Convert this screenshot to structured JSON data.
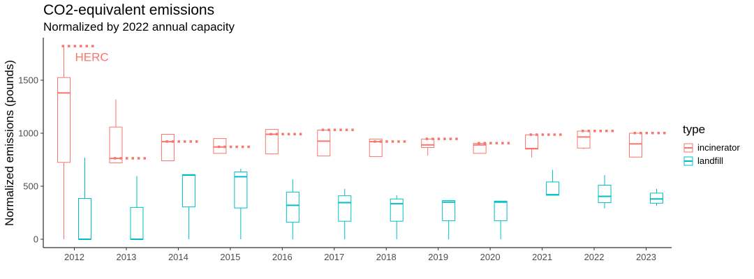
{
  "title": "CO2-equivalent emissions",
  "subtitle": "Normalized by 2022 annual capacity",
  "chart_data": {
    "type": "boxplot",
    "ylabel": "Normalized emissions (pounds)",
    "xlabel": "",
    "ylim": [
      -80,
      1900
    ],
    "yticks": [
      0,
      500,
      1000,
      1500
    ],
    "categories": [
      "2012",
      "2013",
      "2014",
      "2015",
      "2016",
      "2017",
      "2018",
      "2019",
      "2020",
      "2021",
      "2022",
      "2023"
    ],
    "grid": false,
    "legend": {
      "title": "type",
      "position": "right",
      "entries": [
        "incinerator",
        "landfill"
      ]
    },
    "colors": {
      "incinerator": "#F8766D",
      "landfill": "#00BFC4"
    },
    "series": [
      {
        "name": "incinerator",
        "boxes": [
          {
            "min": 0,
            "q1": 725,
            "median": 1380,
            "q3": 1525,
            "max": 1820
          },
          {
            "min": 720,
            "q1": 720,
            "median": 762,
            "q3": 1058,
            "max": 1320
          },
          {
            "min": 740,
            "q1": 740,
            "median": 920,
            "q3": 990,
            "max": 990
          },
          {
            "min": 810,
            "q1": 810,
            "median": 870,
            "q3": 950,
            "max": 950
          },
          {
            "min": 805,
            "q1": 805,
            "median": 990,
            "q3": 1035,
            "max": 1035
          },
          {
            "min": 785,
            "q1": 785,
            "median": 925,
            "q3": 1030,
            "max": 1030
          },
          {
            "min": 780,
            "q1": 780,
            "median": 920,
            "q3": 945,
            "max": 945
          },
          {
            "min": 790,
            "q1": 865,
            "median": 890,
            "q3": 945,
            "max": 945
          },
          {
            "min": 810,
            "q1": 810,
            "median": 890,
            "q3": 905,
            "max": 905
          },
          {
            "min": 770,
            "q1": 850,
            "median": 855,
            "q3": 985,
            "max": 985
          },
          {
            "min": 850,
            "q1": 860,
            "median": 965,
            "q3": 1020,
            "max": 1020
          },
          {
            "min": 775,
            "q1": 775,
            "median": 900,
            "q3": 1000,
            "max": 1000
          }
        ],
        "reference_points": [
          1820,
          762,
          920,
          870,
          990,
          1030,
          920,
          945,
          905,
          985,
          1020,
          1000
        ]
      },
      {
        "name": "landfill",
        "boxes": [
          {
            "min": 0,
            "q1": 0,
            "median": 0,
            "q3": 385,
            "max": 770
          },
          {
            "min": 0,
            "q1": 0,
            "median": 0,
            "q3": 300,
            "max": 595
          },
          {
            "min": 0,
            "q1": 305,
            "median": 605,
            "q3": 610,
            "max": 610
          },
          {
            "min": 0,
            "q1": 295,
            "median": 590,
            "q3": 635,
            "max": 665
          },
          {
            "min": 0,
            "q1": 160,
            "median": 320,
            "q3": 445,
            "max": 565
          },
          {
            "min": 0,
            "q1": 170,
            "median": 345,
            "q3": 410,
            "max": 475
          },
          {
            "min": 0,
            "q1": 170,
            "median": 335,
            "q3": 380,
            "max": 415
          },
          {
            "min": 0,
            "q1": 175,
            "median": 350,
            "q3": 365,
            "max": 370
          },
          {
            "min": 0,
            "q1": 175,
            "median": 350,
            "q3": 360,
            "max": 360
          },
          {
            "min": 415,
            "q1": 415,
            "median": 420,
            "q3": 540,
            "max": 655
          },
          {
            "min": 290,
            "q1": 345,
            "median": 405,
            "q3": 510,
            "max": 605
          },
          {
            "min": 315,
            "q1": 340,
            "median": 380,
            "q3": 435,
            "max": 475
          }
        ]
      }
    ],
    "annotations": [
      {
        "text": "HERC",
        "category": "2012",
        "y": 1720,
        "series": "incinerator"
      }
    ]
  }
}
